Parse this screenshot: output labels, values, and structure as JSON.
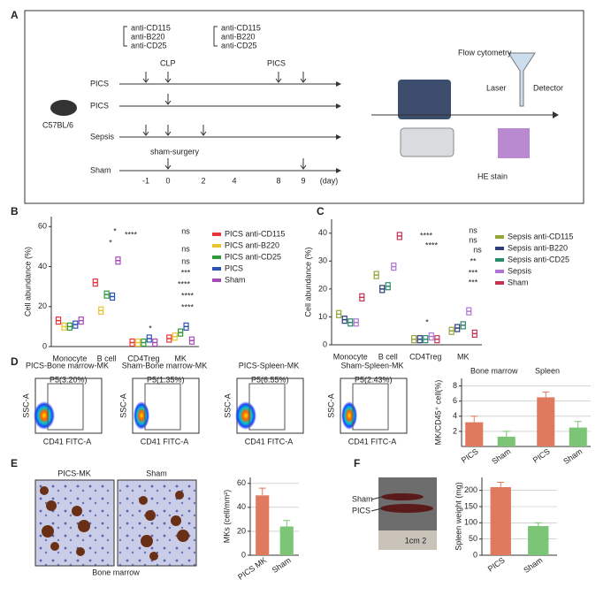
{
  "panels": {
    "A": {
      "label": "A",
      "drugs_1": [
        "anti-CD115",
        "anti-B220",
        "anti-CD25"
      ],
      "drugs_2": [
        "anti-CD115",
        "anti-B220",
        "anti-CD25"
      ],
      "clp": "CLP",
      "pics_top": "PICS",
      "mouse": "C57BL/6",
      "rows": [
        "PICS",
        "PICS",
        "Sepsis",
        "Sham"
      ],
      "sham_surgery": "sham-surgery",
      "days": [
        "-1",
        "0",
        "2",
        "4",
        "8",
        "9",
        "(day)"
      ],
      "flow": "Flow cytometry",
      "laser": "Laser",
      "detector": "Detector",
      "he": "HE stain"
    },
    "B": {
      "label": "B",
      "ylabel": "Cell abundance (%)",
      "categories": [
        "Monocyte",
        "B cell",
        "CD4Treg",
        "MK"
      ],
      "ylim": [
        0,
        65
      ],
      "yticks": [
        0,
        20,
        40,
        60
      ],
      "series": [
        {
          "name": "PICS anti-CD115",
          "color": "#e8333a",
          "values": [
            13,
            32,
            2,
            4
          ]
        },
        {
          "name": "PICS anti-B220",
          "color": "#e8c531",
          "values": [
            10,
            18,
            2,
            5
          ]
        },
        {
          "name": "PICS anti-CD25",
          "color": "#2e9a3a",
          "values": [
            10,
            26,
            2,
            7
          ]
        },
        {
          "name": "PICS",
          "color": "#2a52b8",
          "values": [
            11,
            25,
            4,
            10
          ]
        },
        {
          "name": "Sham",
          "color": "#a44bb5",
          "values": [
            13,
            43,
            2,
            3
          ]
        }
      ],
      "annotations": [
        "*",
        "*",
        "****",
        "*",
        "ns",
        "ns",
        "ns",
        "***",
        "****",
        "****",
        "****"
      ]
    },
    "C": {
      "label": "C",
      "ylabel": "Cell abundance (%)",
      "categories": [
        "Monocyte",
        "B cell",
        "CD4Treg",
        "MK"
      ],
      "ylim": [
        0,
        45
      ],
      "yticks": [
        0,
        10,
        20,
        30,
        40
      ],
      "series": [
        {
          "name": "Sepsis anti-CD115",
          "color": "#93a63a",
          "values": [
            11,
            25,
            2,
            5
          ]
        },
        {
          "name": "Sepsis anti-B220",
          "color": "#2b3d7c",
          "values": [
            9,
            20,
            2,
            6
          ]
        },
        {
          "name": "Sepsis anti-CD25",
          "color": "#2a8a6c",
          "values": [
            8,
            21,
            2,
            7
          ]
        },
        {
          "name": "Sepsis",
          "color": "#b274d3",
          "values": [
            8,
            28,
            3,
            12
          ]
        },
        {
          "name": "Sham",
          "color": "#c23452",
          "values": [
            17,
            39,
            2,
            4
          ]
        }
      ],
      "annotations": [
        "****",
        "****",
        "*",
        "ns",
        "ns",
        "**",
        "***",
        "***",
        "ns"
      ]
    },
    "D": {
      "label": "D",
      "plots": [
        {
          "title": "PICS-Bone marrow-MK",
          "gate": "P5(3.20%)"
        },
        {
          "title": "Sham-Bone marrow-MK",
          "gate": "P5(1.35%)"
        },
        {
          "title": "PICS-Spleen-MK",
          "gate": "P5(6.55%)"
        },
        {
          "title": "Sham-Spleen-MK",
          "gate": "P5(2.43%)"
        }
      ],
      "yaxis": "SSC-A",
      "xaxis": "CD41 FITC-A",
      "bars": {
        "ylabel": "MK/CD45⁺ cell(%)",
        "groups": [
          "Bone marrow",
          "Spleen"
        ],
        "categories": [
          "PICS",
          "Sham",
          "PICS",
          "Sham"
        ],
        "colors": [
          "#e07a5f",
          "#7cc576",
          "#e07a5f",
          "#7cc576"
        ],
        "values": [
          3.2,
          1.3,
          6.5,
          2.5
        ],
        "errors": [
          0.8,
          0.7,
          0.7,
          0.8
        ],
        "ylim": [
          0,
          9
        ],
        "yticks": [
          2,
          4,
          6,
          8
        ]
      }
    },
    "E": {
      "label": "E",
      "images": [
        "PICS-MK",
        "Sham"
      ],
      "caption": "Bone marrow",
      "bars": {
        "ylabel": "MKs (cell/mm²)",
        "categories": [
          "PICS MK",
          "Sham"
        ],
        "colors": [
          "#e07a5f",
          "#7cc576"
        ],
        "values": [
          50,
          24
        ],
        "errors": [
          6,
          5
        ],
        "ylim": [
          0,
          65
        ],
        "yticks": [
          0,
          20,
          40,
          60
        ]
      }
    },
    "F": {
      "label": "F",
      "organs": [
        "Sham",
        "PICS"
      ],
      "scale": "1cm 2",
      "bars": {
        "ylabel": "Spleen weight (mg)",
        "categories": [
          "PICS",
          "Sham"
        ],
        "colors": [
          "#e07a5f",
          "#7cc576"
        ],
        "values": [
          210,
          90
        ],
        "errors": [
          15,
          10
        ],
        "ylim": [
          0,
          240
        ],
        "yticks": [
          0,
          50,
          100,
          150,
          200
        ]
      }
    }
  }
}
